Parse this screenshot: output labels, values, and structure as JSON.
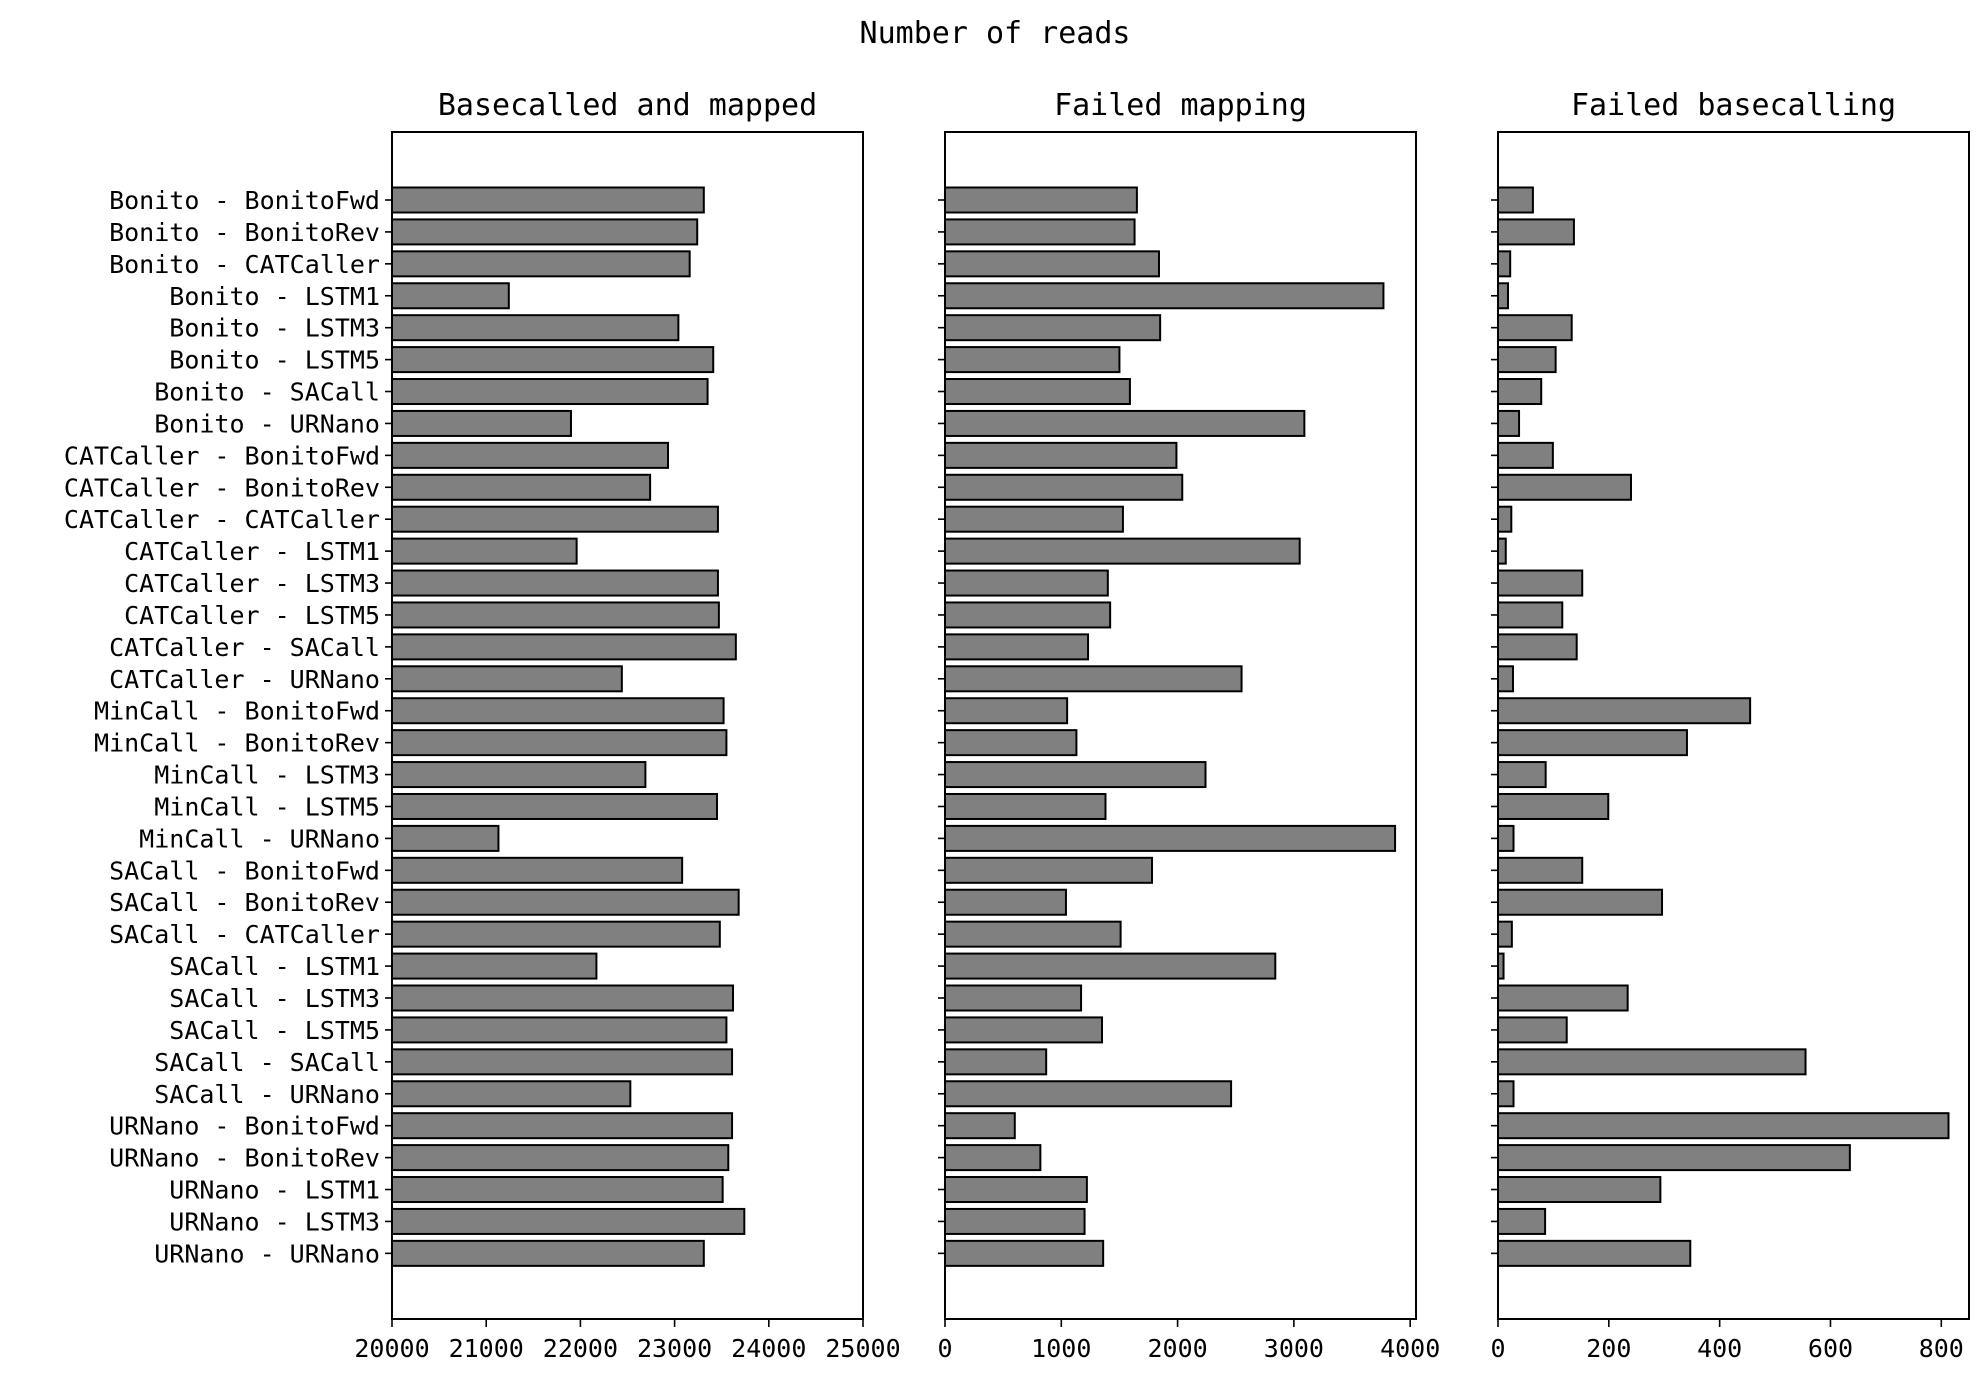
{
  "figure_title": "Number of reads",
  "chart_data": [
    {
      "type": "bar",
      "orientation": "horizontal",
      "title": "Basecalled and mapped",
      "xlim": [
        20000,
        25000
      ],
      "xticks": [
        20000,
        21000,
        22000,
        23000,
        24000,
        25000
      ],
      "tick_labels": [
        "20000",
        "21000",
        "22000",
        "23000",
        "24000",
        "25000"
      ],
      "bar_color": "#808080",
      "categories": [
        "Bonito - BonitoFwd",
        "Bonito - BonitoRev",
        "Bonito - CATCaller",
        "Bonito - LSTM1",
        "Bonito - LSTM3",
        "Bonito - LSTM5",
        "Bonito - SACall",
        "Bonito - URNano",
        "CATCaller - BonitoFwd",
        "CATCaller - BonitoRev",
        "CATCaller - CATCaller",
        "CATCaller - LSTM1",
        "CATCaller - LSTM3",
        "CATCaller - LSTM5",
        "CATCaller - SACall",
        "CATCaller - URNano",
        "MinCall - BonitoFwd",
        "MinCall - BonitoRev",
        "MinCall - LSTM3",
        "MinCall - LSTM5",
        "MinCall - URNano",
        "SACall - BonitoFwd",
        "SACall - BonitoRev",
        "SACall - CATCaller",
        "SACall - LSTM1",
        "SACall - LSTM3",
        "SACall - LSTM5",
        "SACall - SACall",
        "SACall - URNano",
        "URNano - BonitoFwd",
        "URNano - BonitoRev",
        "URNano - LSTM1",
        "URNano - LSTM3",
        "URNano - URNano"
      ],
      "values": [
        23310,
        23240,
        23160,
        21240,
        23040,
        23410,
        23350,
        21900,
        22930,
        22740,
        23460,
        21960,
        23460,
        23470,
        23650,
        22440,
        23520,
        23550,
        22690,
        23450,
        21130,
        23080,
        23680,
        23480,
        22170,
        23620,
        23550,
        23610,
        22530,
        23610,
        23570,
        23510,
        23740,
        23310
      ]
    },
    {
      "type": "bar",
      "orientation": "horizontal",
      "title": "Failed mapping",
      "xlim": [
        0,
        4050
      ],
      "xticks": [
        0,
        1000,
        2000,
        3000,
        4000
      ],
      "tick_labels": [
        "0",
        "1000",
        "2000",
        "3000",
        "4000"
      ],
      "bar_color": "#808080",
      "values": [
        1650,
        1630,
        1840,
        3770,
        1850,
        1500,
        1590,
        3090,
        1990,
        2040,
        1530,
        3050,
        1400,
        1420,
        1230,
        2550,
        1050,
        1130,
        2240,
        1380,
        3870,
        1780,
        1040,
        1510,
        2840,
        1170,
        1350,
        870,
        2460,
        600,
        820,
        1220,
        1200,
        1360
      ]
    },
    {
      "type": "bar",
      "orientation": "horizontal",
      "title": "Failed basecalling",
      "xlim": [
        0,
        850
      ],
      "xticks": [
        0,
        200,
        400,
        600,
        800
      ],
      "tick_labels": [
        "0",
        "200",
        "400",
        "600",
        "800"
      ],
      "bar_color": "#808080",
      "values": [
        63,
        137,
        22,
        18,
        133,
        104,
        78,
        38,
        99,
        240,
        24,
        14,
        152,
        116,
        142,
        27,
        455,
        341,
        86,
        199,
        28,
        152,
        296,
        25,
        10,
        234,
        124,
        555,
        28,
        813,
        635,
        293,
        85,
        347
      ]
    }
  ]
}
